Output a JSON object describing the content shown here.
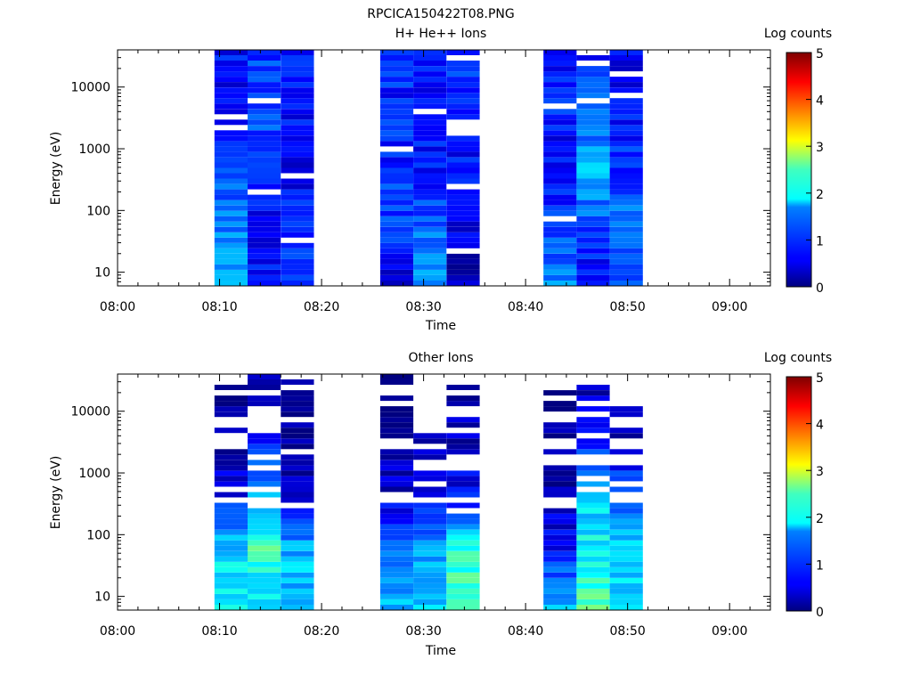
{
  "figure_title": "RPCICA150422T08.PNG",
  "chart_data": [
    {
      "type": "heatmap",
      "title": "H+ He++ Ions",
      "xlabel": "Time",
      "ylabel": "Energy (eV)",
      "yscale": "log",
      "ylim": [
        6,
        40000
      ],
      "xlim": [
        "08:00",
        "09:04"
      ],
      "x_ticks": [
        "08:00",
        "08:10",
        "08:20",
        "08:30",
        "08:40",
        "08:50",
        "09:00"
      ],
      "y_ticks": [
        "10",
        "100",
        "1000",
        "10000"
      ],
      "colorbar": {
        "label": "Log counts",
        "range": [
          0,
          5
        ],
        "ticks": [
          "0",
          "1",
          "2",
          "3",
          "4",
          "5"
        ],
        "colormap": "jet"
      },
      "columns": [
        {
          "start": "08:09:30",
          "end": "08:12:45",
          "profile": [
            1.5,
            1.25,
            0.9,
            0.6,
            0.7
          ]
        },
        {
          "start": "08:12:45",
          "end": "08:16:00",
          "profile": [
            0.6,
            0.65,
            0.85,
            1.0,
            0.9
          ]
        },
        {
          "start": "08:16:00",
          "end": "08:19:15",
          "profile": [
            0.95,
            0.85,
            0.5,
            0.7,
            0.75
          ]
        },
        {
          "start": "08:25:45",
          "end": "08:29:00",
          "profile": [
            0.45,
            1.0,
            0.8,
            0.75,
            0.8
          ]
        },
        {
          "start": "08:29:00",
          "end": "08:32:15",
          "profile": [
            1.5,
            1.15,
            0.7,
            0.7,
            0.6
          ]
        },
        {
          "start": "08:32:15",
          "end": "08:35:30",
          "profile": [
            0.2,
            0.5,
            0.65,
            0.9,
            0.8
          ]
        },
        {
          "start": "08:41:45",
          "end": "08:45:00",
          "profile": [
            1.3,
            0.9,
            0.6,
            0.75,
            0.6
          ]
        },
        {
          "start": "08:45:00",
          "end": "08:48:15",
          "profile": [
            0.5,
            1.0,
            1.5,
            1.0,
            0.8
          ]
        },
        {
          "start": "08:48:15",
          "end": "08:51:30",
          "profile": [
            1.1,
            1.25,
            0.9,
            0.7,
            0.6
          ]
        }
      ]
    },
    {
      "type": "heatmap",
      "title": "Other Ions",
      "xlabel": "Time",
      "ylabel": "Energy (eV)",
      "yscale": "log",
      "ylim": [
        6,
        40000
      ],
      "xlim": [
        "08:00",
        "09:04"
      ],
      "x_ticks": [
        "08:00",
        "08:10",
        "08:20",
        "08:30",
        "08:40",
        "08:50",
        "09:00"
      ],
      "y_ticks": [
        "10",
        "100",
        "1000",
        "10000"
      ],
      "colorbar": {
        "label": "Log counts",
        "range": [
          0,
          5
        ],
        "ticks": [
          "0",
          "1",
          "2",
          "3",
          "4",
          "5"
        ],
        "colormap": "jet"
      },
      "columns": [
        {
          "start": "08:09:30",
          "end": "08:12:45",
          "max_energy": 25000,
          "profile": [
            1.9,
            1.7,
            0.5,
            0.1,
            0.0
          ]
        },
        {
          "start": "08:12:45",
          "end": "08:16:00",
          "max_energy": 35000,
          "profile": [
            1.6,
            2.2,
            1.5,
            0.4,
            0.1
          ]
        },
        {
          "start": "08:16:00",
          "end": "08:19:15",
          "max_energy": 30000,
          "profile": [
            1.6,
            1.5,
            0.4,
            0.1,
            0.0
          ]
        },
        {
          "start": "08:25:45",
          "end": "08:29:00",
          "max_energy": 35000,
          "profile": [
            1.5,
            1.1,
            0.4,
            0.2,
            0.0
          ]
        },
        {
          "start": "08:29:00",
          "end": "08:32:15",
          "max_energy": 4000,
          "profile": [
            1.7,
            1.3,
            0.5,
            0.1,
            0.0
          ]
        },
        {
          "start": "08:32:15",
          "end": "08:35:30",
          "max_energy": 25000,
          "profile": [
            2.3,
            2.0,
            0.6,
            0.3,
            0.1
          ]
        },
        {
          "start": "08:41:45",
          "end": "08:45:00",
          "max_energy": 20000,
          "profile": [
            1.6,
            0.7,
            0.2,
            0.1,
            0.0
          ]
        },
        {
          "start": "08:45:00",
          "end": "08:48:15",
          "max_energy": 25000,
          "profile": [
            2.3,
            1.9,
            1.6,
            0.6,
            0.1
          ]
        },
        {
          "start": "08:48:15",
          "end": "08:51:30",
          "max_energy": 10000,
          "profile": [
            1.5,
            1.8,
            1.0,
            0.3,
            0.0
          ]
        }
      ]
    }
  ]
}
